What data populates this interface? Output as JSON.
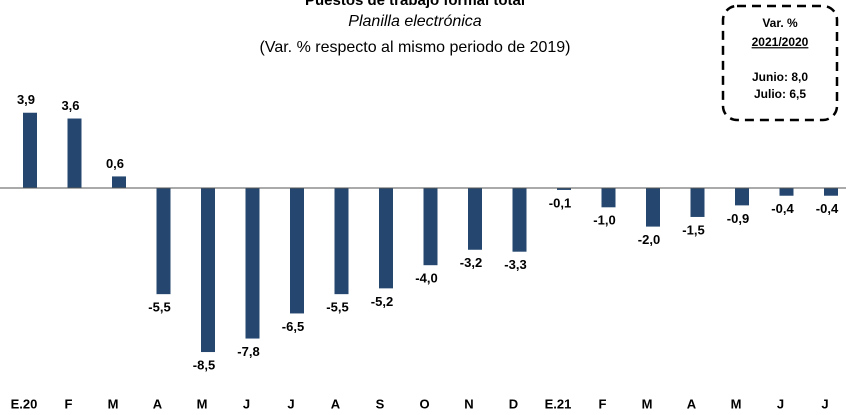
{
  "chart_data": {
    "type": "bar",
    "title": "Puestos de trabajo formal total",
    "subtitle": "Planilla electrónica",
    "subtitle2": "(Var. % respecto al mismo periodo de 2019)",
    "categories": [
      "E.20",
      "F",
      "M",
      "A",
      "M",
      "J",
      "J",
      "A",
      "S",
      "O",
      "N",
      "D",
      "E.21",
      "F",
      "M",
      "A",
      "M",
      "J",
      "J"
    ],
    "values": [
      3.9,
      3.6,
      0.6,
      -5.5,
      -8.5,
      -7.8,
      -6.5,
      -5.5,
      -5.2,
      -4.0,
      -3.2,
      -3.3,
      -0.1,
      -1.0,
      -2.0,
      -1.5,
      -0.9,
      -0.4,
      -0.4
    ],
    "value_labels": [
      "3,9",
      "3,6",
      "0,6",
      "-5,5",
      "-8,5",
      "-7,8",
      "-6,5",
      "-5,5",
      "-5,2",
      "-4,0",
      "-3,2",
      "-3,3",
      "-0,1",
      "-1,0",
      "-2,0",
      "-1,5",
      "-0,9",
      "-0,4",
      "-0,4"
    ],
    "color": "#24466f",
    "ylim": [
      -10,
      5
    ],
    "annotation": {
      "title": "Var. %",
      "period": "2021/2020",
      "lines": [
        "Junio: 8,0",
        "Julio: 6,5"
      ]
    }
  }
}
